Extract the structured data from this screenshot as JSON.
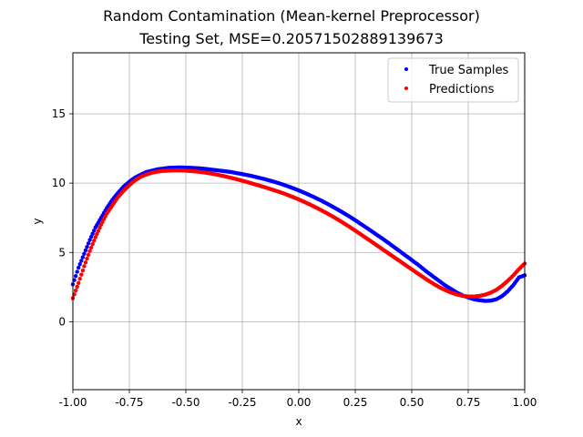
{
  "chart_data": {
    "type": "scatter",
    "title": "Random Contamination (Mean-kernel Preprocessor)",
    "subtitle": "Testing Set, MSE=0.20571502889139673",
    "xlabel": "x",
    "ylabel": "y",
    "xlim": [
      -1.0,
      1.0
    ],
    "ylim": [
      -4.9,
      19.4
    ],
    "xticks": [
      "-1.00",
      "-0.75",
      "-0.50",
      "-0.25",
      "0.00",
      "0.25",
      "0.50",
      "0.75",
      "1.00"
    ],
    "yticks": [
      "0",
      "5",
      "10",
      "15"
    ],
    "grid": true,
    "legend_position": "top-right",
    "series": [
      {
        "name": "True Samples",
        "color": "#0000ff",
        "x": [
          -1.0,
          -0.975,
          -0.95,
          -0.925,
          -0.9,
          -0.875,
          -0.85,
          -0.825,
          -0.8,
          -0.775,
          -0.75,
          -0.725,
          -0.7,
          -0.675,
          -0.65,
          -0.625,
          -0.6,
          -0.575,
          -0.55,
          -0.525,
          -0.5,
          -0.475,
          -0.45,
          -0.425,
          -0.4,
          -0.375,
          -0.35,
          -0.325,
          -0.3,
          -0.275,
          -0.25,
          -0.225,
          -0.2,
          -0.175,
          -0.15,
          -0.125,
          -0.1,
          -0.075,
          -0.05,
          -0.025,
          0.0,
          0.025,
          0.05,
          0.075,
          0.1,
          0.125,
          0.15,
          0.175,
          0.2,
          0.225,
          0.25,
          0.275,
          0.3,
          0.325,
          0.35,
          0.375,
          0.4,
          0.425,
          0.45,
          0.475,
          0.5,
          0.525,
          0.55,
          0.575,
          0.6,
          0.625,
          0.65,
          0.675,
          0.7,
          0.725,
          0.75,
          0.775,
          0.8,
          0.825,
          0.85,
          0.875,
          0.9,
          0.925,
          0.95,
          0.975,
          1.0
        ],
        "y": [
          2.7,
          3.9,
          4.9,
          5.9,
          6.8,
          7.5,
          8.2,
          8.8,
          9.3,
          9.75,
          10.1,
          10.4,
          10.6,
          10.8,
          10.9,
          11.0,
          11.05,
          11.1,
          11.12,
          11.13,
          11.12,
          11.1,
          11.08,
          11.05,
          11.0,
          10.95,
          10.9,
          10.85,
          10.8,
          10.72,
          10.65,
          10.57,
          10.48,
          10.38,
          10.28,
          10.17,
          10.05,
          9.92,
          9.78,
          9.63,
          9.47,
          9.3,
          9.12,
          8.93,
          8.73,
          8.52,
          8.3,
          8.07,
          7.83,
          7.58,
          7.32,
          7.05,
          6.78,
          6.5,
          6.22,
          5.94,
          5.65,
          5.35,
          5.05,
          4.75,
          4.45,
          4.15,
          3.82,
          3.5,
          3.2,
          2.9,
          2.6,
          2.35,
          2.1,
          1.9,
          1.75,
          1.62,
          1.55,
          1.5,
          1.52,
          1.62,
          1.85,
          2.2,
          2.65,
          3.2,
          3.35
        ]
      },
      {
        "name": "Predictions",
        "color": "#ff0000",
        "x": [
          -1.0,
          -0.975,
          -0.95,
          -0.925,
          -0.9,
          -0.875,
          -0.85,
          -0.825,
          -0.8,
          -0.775,
          -0.75,
          -0.725,
          -0.7,
          -0.675,
          -0.65,
          -0.625,
          -0.6,
          -0.575,
          -0.55,
          -0.525,
          -0.5,
          -0.475,
          -0.45,
          -0.425,
          -0.4,
          -0.375,
          -0.35,
          -0.325,
          -0.3,
          -0.275,
          -0.25,
          -0.225,
          -0.2,
          -0.175,
          -0.15,
          -0.125,
          -0.1,
          -0.075,
          -0.05,
          -0.025,
          0.0,
          0.025,
          0.05,
          0.075,
          0.1,
          0.125,
          0.15,
          0.175,
          0.2,
          0.225,
          0.25,
          0.275,
          0.3,
          0.325,
          0.35,
          0.375,
          0.4,
          0.425,
          0.45,
          0.475,
          0.5,
          0.525,
          0.55,
          0.575,
          0.6,
          0.625,
          0.65,
          0.675,
          0.7,
          0.725,
          0.75,
          0.775,
          0.8,
          0.825,
          0.85,
          0.875,
          0.9,
          0.925,
          0.95,
          0.975,
          1.0
        ],
        "y": [
          1.7,
          2.8,
          4.0,
          5.1,
          6.1,
          7.0,
          7.8,
          8.4,
          9.0,
          9.45,
          9.85,
          10.2,
          10.45,
          10.62,
          10.75,
          10.83,
          10.88,
          10.9,
          10.92,
          10.92,
          10.9,
          10.87,
          10.83,
          10.78,
          10.72,
          10.65,
          10.57,
          10.48,
          10.38,
          10.28,
          10.17,
          10.06,
          9.94,
          9.82,
          9.7,
          9.57,
          9.44,
          9.3,
          9.15,
          8.99,
          8.82,
          8.64,
          8.45,
          8.25,
          8.04,
          7.82,
          7.59,
          7.35,
          7.1,
          6.84,
          6.57,
          6.3,
          6.02,
          5.74,
          5.46,
          5.18,
          4.9,
          4.62,
          4.34,
          4.06,
          3.78,
          3.5,
          3.22,
          2.95,
          2.7,
          2.47,
          2.27,
          2.1,
          1.96,
          1.87,
          1.82,
          1.82,
          1.86,
          1.95,
          2.1,
          2.3,
          2.6,
          2.95,
          3.35,
          3.8,
          4.2
        ]
      }
    ]
  }
}
